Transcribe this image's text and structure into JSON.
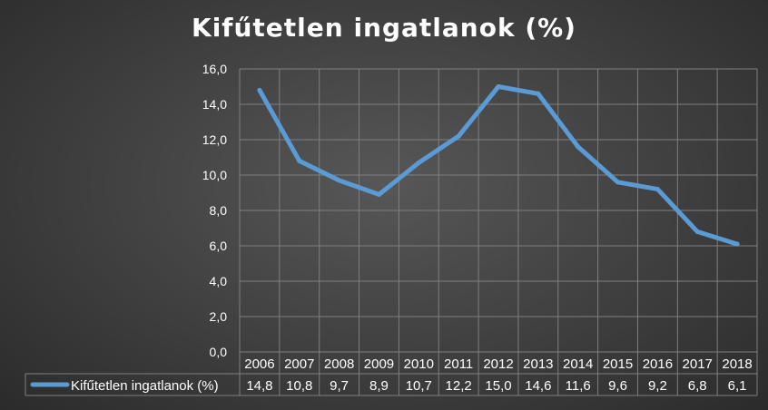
{
  "chart_data": {
    "type": "line",
    "title": "Kifűtetlen ingatlanok (%)",
    "categories": [
      "2006",
      "2007",
      "2008",
      "2009",
      "2010",
      "2011",
      "2012",
      "2013",
      "2014",
      "2015",
      "2016",
      "2017",
      "2018"
    ],
    "series": [
      {
        "name": "Kifűtetlen ingatlanok (%)",
        "values": [
          14.8,
          10.8,
          9.7,
          8.9,
          10.7,
          12.2,
          15.0,
          14.6,
          11.6,
          9.6,
          9.2,
          6.8,
          6.1
        ],
        "value_labels": [
          "14,8",
          "10,8",
          "9,7",
          "8,9",
          "10,7",
          "12,2",
          "15,0",
          "14,6",
          "11,6",
          "9,6",
          "9,2",
          "6,8",
          "6,1"
        ]
      }
    ],
    "ylim": [
      0,
      16
    ],
    "yticks": [
      "0,0",
      "2,0",
      "4,0",
      "6,0",
      "8,0",
      "10,0",
      "12,0",
      "14,0",
      "16,0"
    ],
    "ytick_values": [
      0,
      2,
      4,
      6,
      8,
      10,
      12,
      14,
      16
    ],
    "grid": true,
    "legend": "data-table",
    "colors": {
      "line": "#5b9bd5",
      "grid": "#7f7f7f",
      "text": "#ffffff"
    }
  }
}
